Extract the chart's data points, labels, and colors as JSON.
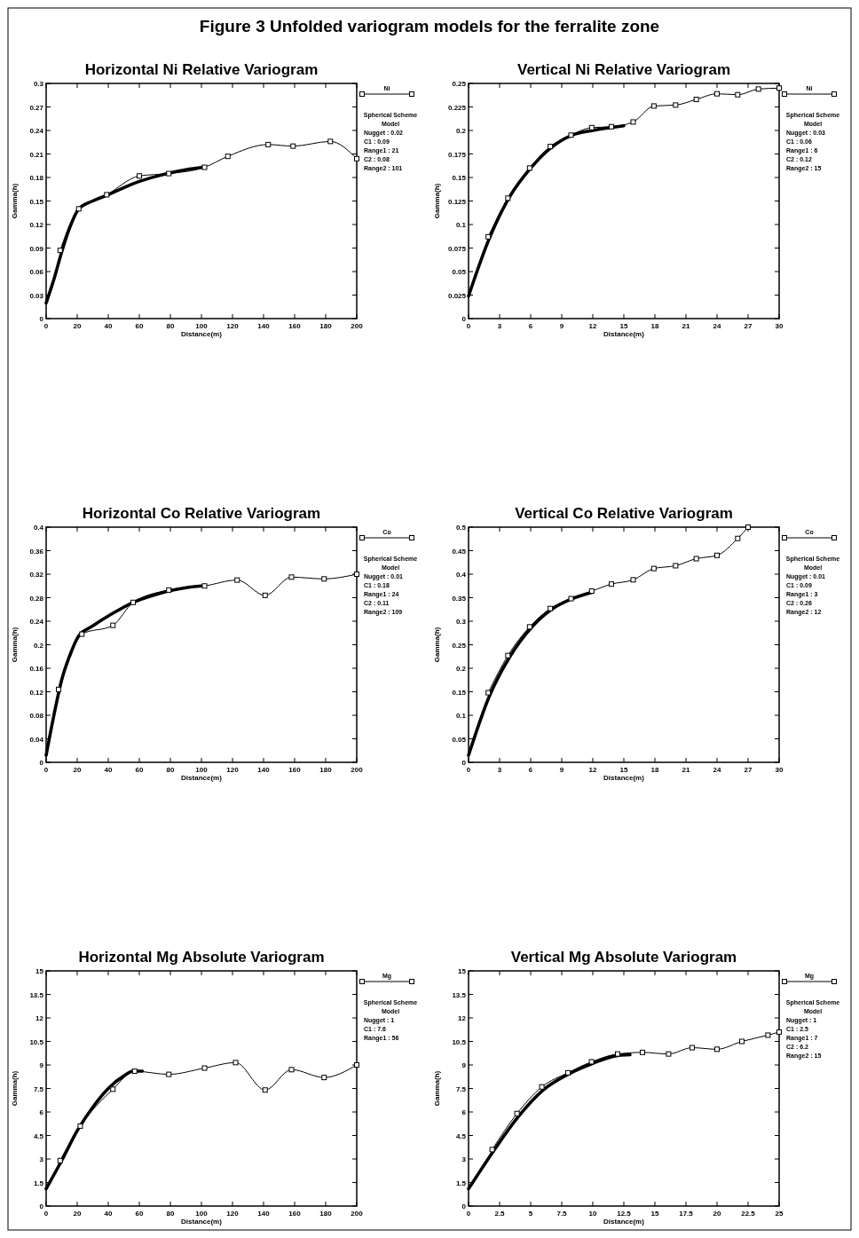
{
  "chart_data": [
    {
      "type": "line",
      "title": "Horizontal Ni Relative Variogram",
      "xlabel": "Distance(m)",
      "ylabel": "Gamma(h)",
      "xlim": [
        0,
        200
      ],
      "xticks": [
        0,
        20,
        40,
        60,
        80,
        100,
        120,
        140,
        160,
        180,
        200
      ],
      "ylim": [
        0,
        0.3
      ],
      "yticks": [
        0,
        0.03,
        0.06,
        0.09,
        0.12,
        0.15,
        0.18,
        0.21,
        0.24,
        0.27,
        0.3
      ],
      "legend": "right",
      "annotations": [
        "Figure 3 Unfolded variogram  models for the ferralite zone",
        "Spherical Scheme",
        "Model",
        "Nugget : 0.02",
        "C1 : 0.09",
        "Range1 : 21",
        "C2 : 0.08",
        "Range2 : 101"
      ],
      "series": [
        {
          "name": "Ni",
          "color": "#000000",
          "marker": "square",
          "x": [
            9,
            21,
            39,
            60,
            79,
            102,
            117,
            143,
            159,
            183,
            200
          ],
          "values": [
            0.087,
            0.14,
            0.158,
            0.182,
            0.185,
            0.193,
            0.207,
            0.222,
            0.22,
            0.226,
            0.204
          ]
        },
        {
          "color": "#000000",
          "marker": "none",
          "x": [
            0,
            5,
            10,
            15,
            21,
            30,
            40,
            50,
            60,
            70,
            80,
            90,
            101
          ],
          "values": [
            0.02,
            0.05,
            0.085,
            0.115,
            0.14,
            0.15,
            0.158,
            0.167,
            0.175,
            0.181,
            0.186,
            0.19,
            0.193
          ]
        }
      ]
    },
    {
      "type": "line",
      "title": "Vertical Ni Relative Variogram",
      "xlabel": "Distance(m)",
      "ylabel": "Gamma(h)",
      "xlim": [
        0,
        30
      ],
      "xticks": [
        0,
        3,
        6,
        9,
        12,
        15,
        18,
        21,
        24,
        27,
        30
      ],
      "ylim": [
        0,
        0.25
      ],
      "yticks": [
        0,
        0.025,
        0.05,
        0.075,
        0.1,
        0.125,
        0.15,
        0.175,
        0.2,
        0.225,
        0.25
      ],
      "legend": "right",
      "annotations": [
        "Spherical Scheme",
        "Model",
        "Nugget : 0.03",
        "C1 : 0.06",
        "Range1 : 6",
        "C2 : 0.12",
        "Range2 : 15"
      ],
      "series": [
        {
          "name": "Ni",
          "color": "#000000",
          "marker": "square",
          "x": [
            1.9,
            3.8,
            5.9,
            7.9,
            9.9,
            11.9,
            13.8,
            15.9,
            17.9,
            20,
            22,
            24,
            26,
            28,
            30
          ],
          "values": [
            0.087,
            0.128,
            0.16,
            0.183,
            0.195,
            0.203,
            0.204,
            0.209,
            0.226,
            0.227,
            0.233,
            0.239,
            0.238,
            0.244,
            0.245
          ]
        },
        {
          "color": "#000000",
          "marker": "none",
          "x": [
            0,
            2,
            4,
            6,
            8,
            10,
            12,
            15
          ],
          "values": [
            0.024,
            0.085,
            0.13,
            0.16,
            0.182,
            0.195,
            0.2,
            0.205
          ]
        }
      ]
    },
    {
      "type": "line",
      "title": "Horizontal Co Relative Variogram",
      "xlabel": "Distance(m)",
      "ylabel": "Gamma(h)",
      "xlim": [
        0,
        200
      ],
      "xticks": [
        0,
        20,
        40,
        60,
        80,
        100,
        120,
        140,
        160,
        180,
        200
      ],
      "ylim": [
        0,
        0.4
      ],
      "yticks": [
        0,
        0.04,
        0.08,
        0.12,
        0.16,
        0.2,
        0.24,
        0.28,
        0.32,
        0.36,
        0.4
      ],
      "legend": "right",
      "annotations": [
        "Spherical Scheme",
        "Model",
        "Nugget : 0.01",
        "C1 : 0.18",
        "Range1 : 24",
        "C2 : 0.11",
        "Range2 : 109"
      ],
      "series": [
        {
          "name": "Co",
          "color": "#000000",
          "marker": "square",
          "x": [
            8,
            23,
            43,
            56,
            79,
            102,
            123,
            141,
            158,
            179,
            200
          ],
          "values": [
            0.124,
            0.218,
            0.233,
            0.272,
            0.293,
            0.3,
            0.31,
            0.284,
            0.315,
            0.312,
            0.32
          ]
        },
        {
          "color": "#000000",
          "marker": "none",
          "x": [
            0,
            5,
            10,
            15,
            21,
            30,
            42,
            56,
            70,
            80,
            90,
            100
          ],
          "values": [
            0.012,
            0.08,
            0.14,
            0.18,
            0.215,
            0.232,
            0.252,
            0.272,
            0.285,
            0.292,
            0.297,
            0.3
          ]
        }
      ]
    },
    {
      "type": "line",
      "title": "Vertical Co Relative Variogram",
      "xlabel": "Distance(m)",
      "ylabel": "Gamma(h)",
      "xlim": [
        0,
        30
      ],
      "xticks": [
        0,
        3,
        6,
        9,
        12,
        15,
        18,
        21,
        24,
        27,
        30
      ],
      "ylim": [
        0,
        0.5
      ],
      "yticks": [
        0,
        0.05,
        0.1,
        0.15,
        0.2,
        0.25,
        0.3,
        0.35,
        0.4,
        0.45,
        0.5
      ],
      "legend": "right",
      "annotations": [
        "Spherical Scheme",
        "Model",
        "Nugget : 0.01",
        "C1 : 0.09",
        "Range1 : 3",
        "C2 : 0.26",
        "Range2 : 12"
      ],
      "series": [
        {
          "name": "Co",
          "color": "#000000",
          "marker": "square",
          "x": [
            1.9,
            3.8,
            5.9,
            7.9,
            9.9,
            11.9,
            13.8,
            15.9,
            17.9,
            20,
            22,
            24,
            26,
            27
          ],
          "values": [
            0.148,
            0.227,
            0.288,
            0.327,
            0.348,
            0.364,
            0.379,
            0.388,
            0.412,
            0.418,
            0.433,
            0.44,
            0.476,
            0.5
          ]
        },
        {
          "color": "#000000",
          "marker": "none",
          "x": [
            0,
            2,
            4,
            6,
            8,
            10,
            12
          ],
          "values": [
            0.015,
            0.14,
            0.225,
            0.285,
            0.325,
            0.348,
            0.362
          ]
        }
      ]
    },
    {
      "type": "line",
      "title": "Horizontal Mg Absolute Variogram",
      "xlabel": "Distance(m)",
      "ylabel": "Gamma(h)",
      "xlim": [
        0,
        200
      ],
      "xticks": [
        0,
        20,
        40,
        60,
        80,
        100,
        120,
        140,
        160,
        180,
        200
      ],
      "ylim": [
        0,
        15
      ],
      "yticks": [
        0,
        1.5,
        3,
        4.5,
        6,
        7.5,
        9,
        10.5,
        12,
        13.5,
        15
      ],
      "legend": "right",
      "annotations": [
        "Spherical Scheme",
        "Model",
        "Nugget : 1",
        "C1 : 7.6",
        "Range1 : 56"
      ],
      "series": [
        {
          "name": "Mg",
          "color": "#000000",
          "marker": "square",
          "x": [
            9,
            22,
            43,
            57,
            79,
            102,
            122,
            141,
            158,
            179,
            200
          ],
          "values": [
            2.9,
            5.1,
            7.45,
            8.6,
            8.4,
            8.8,
            9.15,
            7.4,
            8.7,
            8.2,
            9
          ]
        },
        {
          "color": "#000000",
          "marker": "none",
          "x": [
            0,
            10,
            20,
            30,
            40,
            50,
            56,
            62
          ],
          "values": [
            1.1,
            2.9,
            4.8,
            6.3,
            7.5,
            8.3,
            8.6,
            8.6
          ]
        }
      ]
    },
    {
      "type": "line",
      "title": "Vertical Mg Absolute Variogram",
      "xlabel": "Distance(m)",
      "ylabel": "Gamma(h)",
      "xlim": [
        0,
        25
      ],
      "xticks": [
        0,
        2.5,
        5,
        7.5,
        10,
        12.5,
        15,
        17.5,
        20,
        22.5,
        25
      ],
      "ylim": [
        0,
        15
      ],
      "yticks": [
        0,
        1.5,
        3,
        4.5,
        6,
        7.5,
        9,
        10.5,
        12,
        13.5,
        15
      ],
      "legend": "right",
      "annotations": [
        "Spherical Scheme",
        "Model",
        "Nugget : 1",
        "C1 : 2.5",
        "Range1 : 7",
        "C2 : 6.2",
        "Range2 : 15"
      ],
      "series": [
        {
          "name": "Mg",
          "color": "#000000",
          "marker": "square",
          "x": [
            1.9,
            3.9,
            5.9,
            8,
            9.9,
            12,
            14,
            16.1,
            18,
            20,
            22,
            24.1,
            25
          ],
          "values": [
            3.6,
            5.9,
            7.6,
            8.5,
            9.2,
            9.7,
            9.8,
            9.7,
            10.1,
            10,
            10.5,
            10.9,
            11.1
          ]
        },
        {
          "color": "#000000",
          "marker": "none",
          "x": [
            0,
            2,
            4,
            6,
            8,
            10,
            12,
            13
          ],
          "values": [
            1.1,
            3.5,
            5.7,
            7.4,
            8.4,
            9.1,
            9.6,
            9.65
          ]
        }
      ]
    }
  ]
}
